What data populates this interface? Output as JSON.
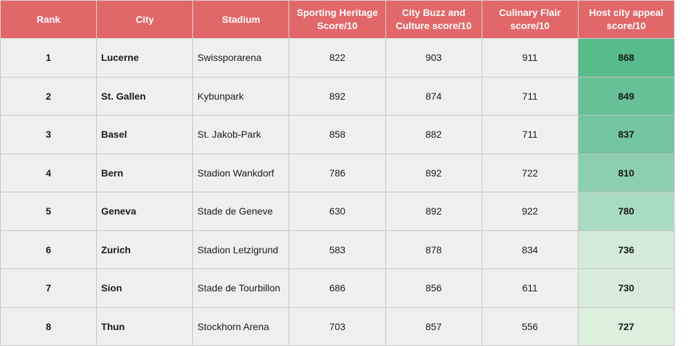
{
  "table": {
    "headers": [
      "Rank",
      "City",
      "Stadium",
      "Sporting Heritage Score/10",
      "City Buzz and Culture score/10",
      "Culinary Flair score/10",
      "Host city appeal score/10"
    ],
    "rows": [
      {
        "rank": "1",
        "city": "Lucerne",
        "stadium": "Swissporarena",
        "sporting": "822",
        "buzz": "903",
        "culinary": "911",
        "appeal": "868",
        "appeal_color": "#57bb8a"
      },
      {
        "rank": "2",
        "city": "St. Gallen",
        "stadium": "Kybunpark",
        "sporting": "892",
        "buzz": "874",
        "culinary": "711",
        "appeal": "849",
        "appeal_color": "#67c195"
      },
      {
        "rank": "3",
        "city": "Basel",
        "stadium": "St. Jakob-Park",
        "sporting": "858",
        "buzz": "882",
        "culinary": "711",
        "appeal": "837",
        "appeal_color": "#72c59c"
      },
      {
        "rank": "4",
        "city": "Bern",
        "stadium": "Stadion Wankdorf",
        "sporting": "786",
        "buzz": "892",
        "culinary": "722",
        "appeal": "810",
        "appeal_color": "#8bcfad"
      },
      {
        "rank": "5",
        "city": "Geneva",
        "stadium": "Stade de Geneve",
        "sporting": "630",
        "buzz": "892",
        "culinary": "922",
        "appeal": "780",
        "appeal_color": "#a9dbc1"
      },
      {
        "rank": "6",
        "city": "Zurich",
        "stadium": "Stadion Letzigrund",
        "sporting": "583",
        "buzz": "878",
        "culinary": "834",
        "appeal": "736",
        "appeal_color": "#d3ebd7"
      },
      {
        "rank": "7",
        "city": "Sion",
        "stadium": "Stade de Tourbillon",
        "sporting": "686",
        "buzz": "856",
        "culinary": "611",
        "appeal": "730",
        "appeal_color": "#d8edd9"
      },
      {
        "rank": "8",
        "city": "Thun",
        "stadium": "Stockhorn Arena",
        "sporting": "703",
        "buzz": "857",
        "culinary": "556",
        "appeal": "727",
        "appeal_color": "#dcf0dc"
      }
    ]
  }
}
